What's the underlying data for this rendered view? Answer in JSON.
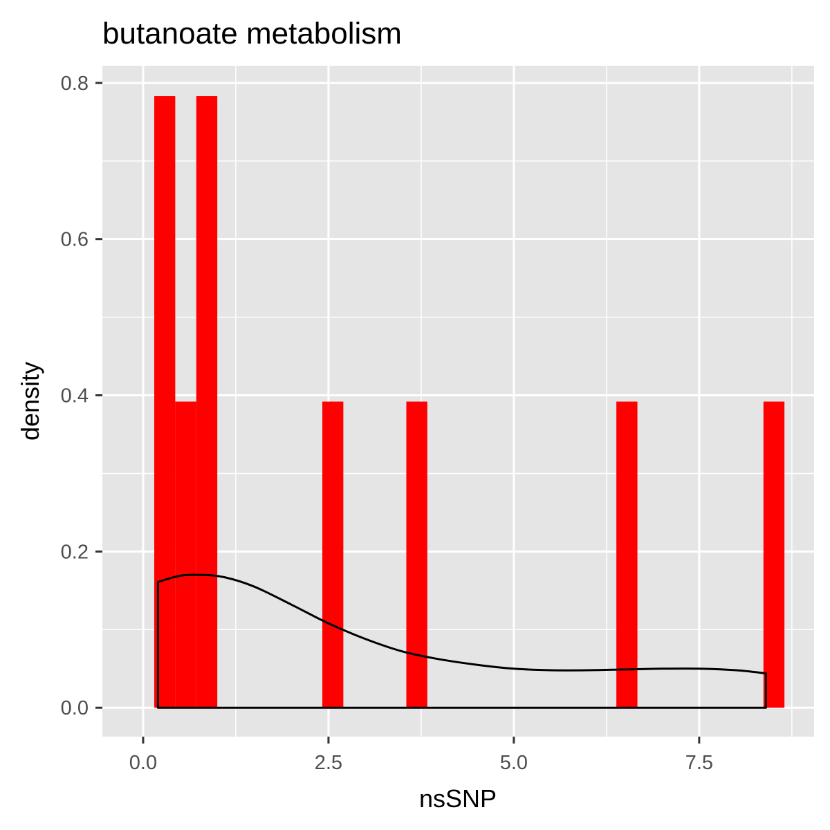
{
  "chart_data": {
    "type": "bar",
    "title": "butanoate metabolism",
    "xlabel": "nsSNP",
    "ylabel": "density",
    "xlim": [
      -0.55,
      9.05
    ],
    "ylim": [
      -0.037,
      0.822
    ],
    "x_ticks": [
      0.0,
      2.5,
      5.0,
      7.5
    ],
    "x_tick_labels": [
      "0.0",
      "2.5",
      "5.0",
      "7.5"
    ],
    "y_ticks": [
      0.0,
      0.2,
      0.4,
      0.6,
      0.8
    ],
    "y_tick_labels": [
      "0.0",
      "0.2",
      "0.4",
      "0.6",
      "0.8"
    ],
    "grid": true,
    "histogram": {
      "bin_width": 0.2833,
      "fill": "#ff0000",
      "bins": [
        {
          "xmin": 0.15,
          "xmax": 0.433,
          "density": 0.783
        },
        {
          "xmin": 0.433,
          "xmax": 0.717,
          "density": 0.392
        },
        {
          "xmin": 0.717,
          "xmax": 1.0,
          "density": 0.783
        },
        {
          "xmin": 2.417,
          "xmax": 2.7,
          "density": 0.392
        },
        {
          "xmin": 3.55,
          "xmax": 3.833,
          "density": 0.392
        },
        {
          "xmin": 6.383,
          "xmax": 6.667,
          "density": 0.392
        },
        {
          "xmin": 8.367,
          "xmax": 8.65,
          "density": 0.392
        }
      ]
    },
    "density_curve": {
      "color": "#000000",
      "x": [
        0.2,
        0.5,
        0.8,
        1.1,
        1.5,
        2.0,
        2.5,
        3.0,
        3.5,
        4.0,
        4.5,
        5.0,
        5.5,
        6.0,
        6.5,
        7.0,
        7.5,
        8.0,
        8.4
      ],
      "y": [
        0.161,
        0.169,
        0.17,
        0.167,
        0.155,
        0.132,
        0.108,
        0.088,
        0.072,
        0.062,
        0.055,
        0.05,
        0.048,
        0.048,
        0.049,
        0.05,
        0.05,
        0.048,
        0.044
      ]
    },
    "colors": {
      "panel_background": "#e5e5e5",
      "grid": "#ffffff",
      "bar": "#ff0000",
      "line": "#000000"
    }
  }
}
